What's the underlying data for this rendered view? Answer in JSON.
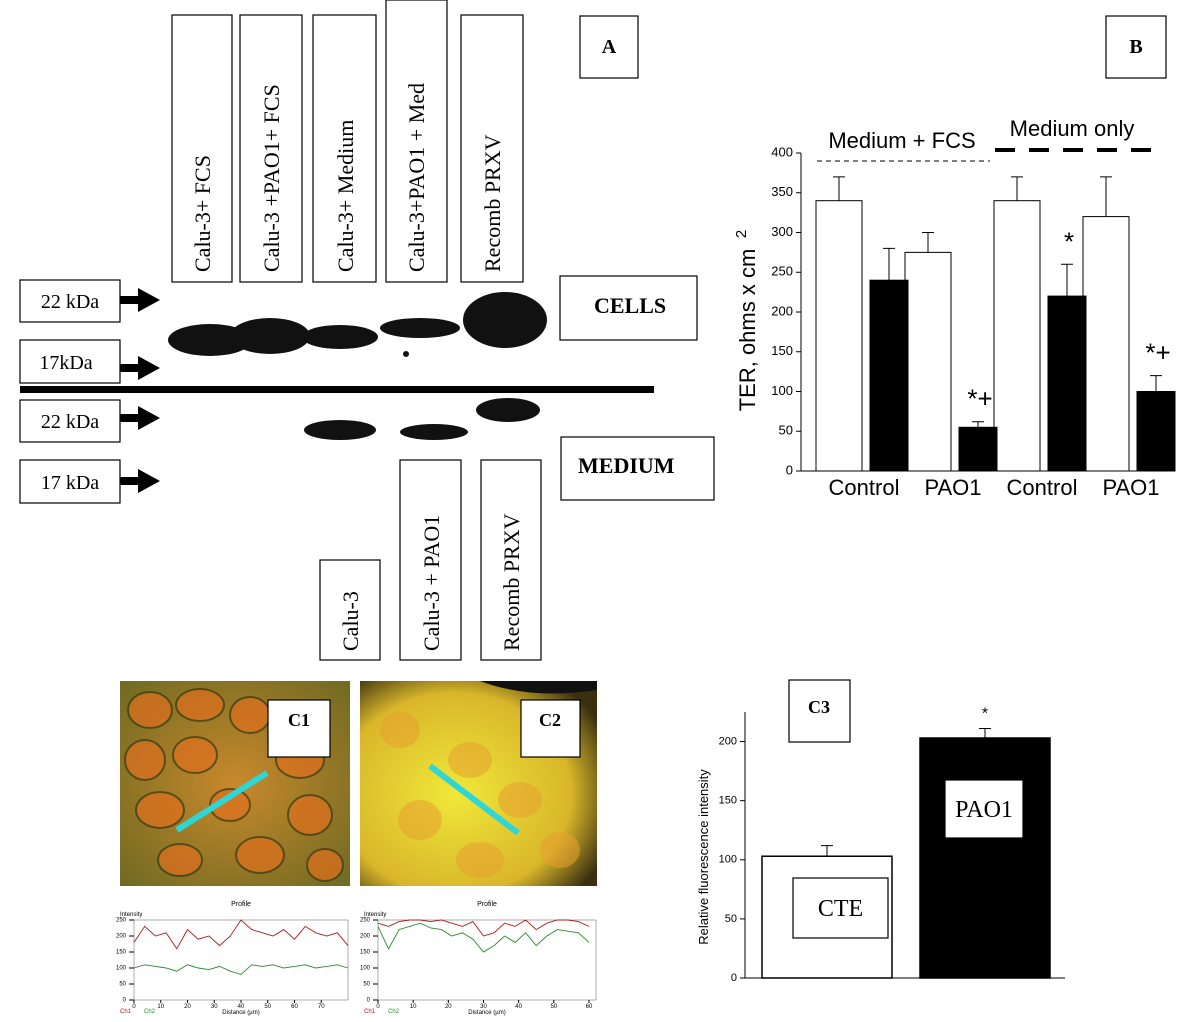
{
  "panel_a": {
    "label": "A",
    "lanes_top": [
      "Calu-3+ FCS",
      "Calu-3 +PAO1+ FCS",
      "Calu-3+ Medium",
      "Calu-3+PAO1 + Med",
      "Recomb PRXV"
    ],
    "markers": [
      "22 kDa",
      "17kDa",
      "22 kDa",
      "17 kDa"
    ],
    "fractions": [
      "CELLS",
      "MEDIUM"
    ],
    "lanes_bottom": [
      "Calu-3",
      "Calu-3 + PAO1",
      "Recomb PRXV"
    ]
  },
  "panel_c": {
    "images": [
      "C1",
      "C2"
    ]
  },
  "chart_data": [
    {
      "type": "bar",
      "title": "B",
      "ylabel": "TER, ohms x cm",
      "ylabel_superscript": "2",
      "categories": [
        "Control",
        "PAO1",
        "Control",
        "PAO1"
      ],
      "groups": [
        "Medium + FCS",
        "Medium only"
      ],
      "series": [
        {
          "color": "#ffffff",
          "values": [
            340,
            275,
            340,
            320
          ],
          "errors": [
            30,
            25,
            30,
            50
          ],
          "significance": [
            null,
            null,
            null,
            null
          ]
        },
        {
          "color": "#000000",
          "values": [
            240,
            55,
            220,
            100
          ],
          "errors": [
            40,
            7,
            40,
            20
          ],
          "significance": [
            null,
            "*+",
            "*",
            "*+"
          ]
        }
      ],
      "ylim": [
        0,
        400
      ],
      "yticks": [
        0,
        50,
        100,
        150,
        200,
        250,
        300,
        350,
        400
      ],
      "grid": false
    },
    {
      "type": "bar",
      "title": "C3",
      "ylabel": "Relative fluorescence intensity",
      "categories": [
        "CTE",
        "PAO1"
      ],
      "values": [
        103,
        203
      ],
      "errors": [
        9,
        8
      ],
      "colors": [
        "#ffffff",
        "#000000"
      ],
      "significance": [
        null,
        "*"
      ],
      "ylim": [
        0,
        225
      ],
      "yticks": [
        0,
        50,
        100,
        150,
        200
      ],
      "grid": false
    },
    {
      "type": "line",
      "title": "Profile",
      "ylabel": "Intensity",
      "xlabel": "Distance (µm)",
      "x": [
        0,
        4,
        8,
        12,
        16,
        20,
        24,
        28,
        32,
        36,
        40,
        44,
        48,
        52,
        56,
        60,
        64,
        68,
        72,
        76,
        80
      ],
      "series": [
        {
          "name": "Ch1",
          "color": "#b01818",
          "values": [
            180,
            230,
            200,
            210,
            160,
            220,
            190,
            200,
            170,
            200,
            250,
            220,
            210,
            200,
            220,
            190,
            230,
            210,
            200,
            210,
            170
          ]
        },
        {
          "name": "Ch2",
          "color": "#2a8a2a",
          "values": [
            100,
            110,
            105,
            100,
            90,
            110,
            100,
            95,
            105,
            90,
            80,
            110,
            105,
            110,
            100,
            105,
            110,
            100,
            105,
            110,
            100
          ]
        }
      ],
      "xlim": [
        0,
        80
      ],
      "xticks": [
        0,
        10,
        20,
        30,
        40,
        50,
        60,
        70
      ],
      "ylim": [
        0,
        250
      ],
      "yticks": [
        0,
        50,
        100,
        150,
        200,
        250
      ],
      "grid": false
    },
    {
      "type": "line",
      "title": "Profile",
      "ylabel": "Intensity",
      "xlabel": "Distance (µm)",
      "x": [
        0,
        3,
        6,
        9,
        12,
        15,
        18,
        21,
        24,
        27,
        30,
        33,
        36,
        39,
        42,
        45,
        48,
        51,
        54,
        57,
        60
      ],
      "series": [
        {
          "name": "Ch1",
          "color": "#b01818",
          "values": [
            240,
            230,
            245,
            250,
            250,
            245,
            250,
            240,
            230,
            245,
            200,
            210,
            240,
            230,
            250,
            220,
            240,
            250,
            250,
            245,
            230
          ]
        },
        {
          "name": "Ch2",
          "color": "#2a8a2a",
          "values": [
            230,
            160,
            220,
            230,
            240,
            225,
            220,
            200,
            210,
            190,
            150,
            170,
            200,
            180,
            210,
            170,
            200,
            220,
            215,
            210,
            180
          ]
        }
      ],
      "xlim": [
        0,
        62
      ],
      "xticks": [
        0,
        10,
        20,
        30,
        40,
        50,
        60
      ],
      "ylim": [
        0,
        250
      ],
      "yticks": [
        0,
        50,
        100,
        150,
        200,
        250
      ],
      "grid": false
    }
  ]
}
